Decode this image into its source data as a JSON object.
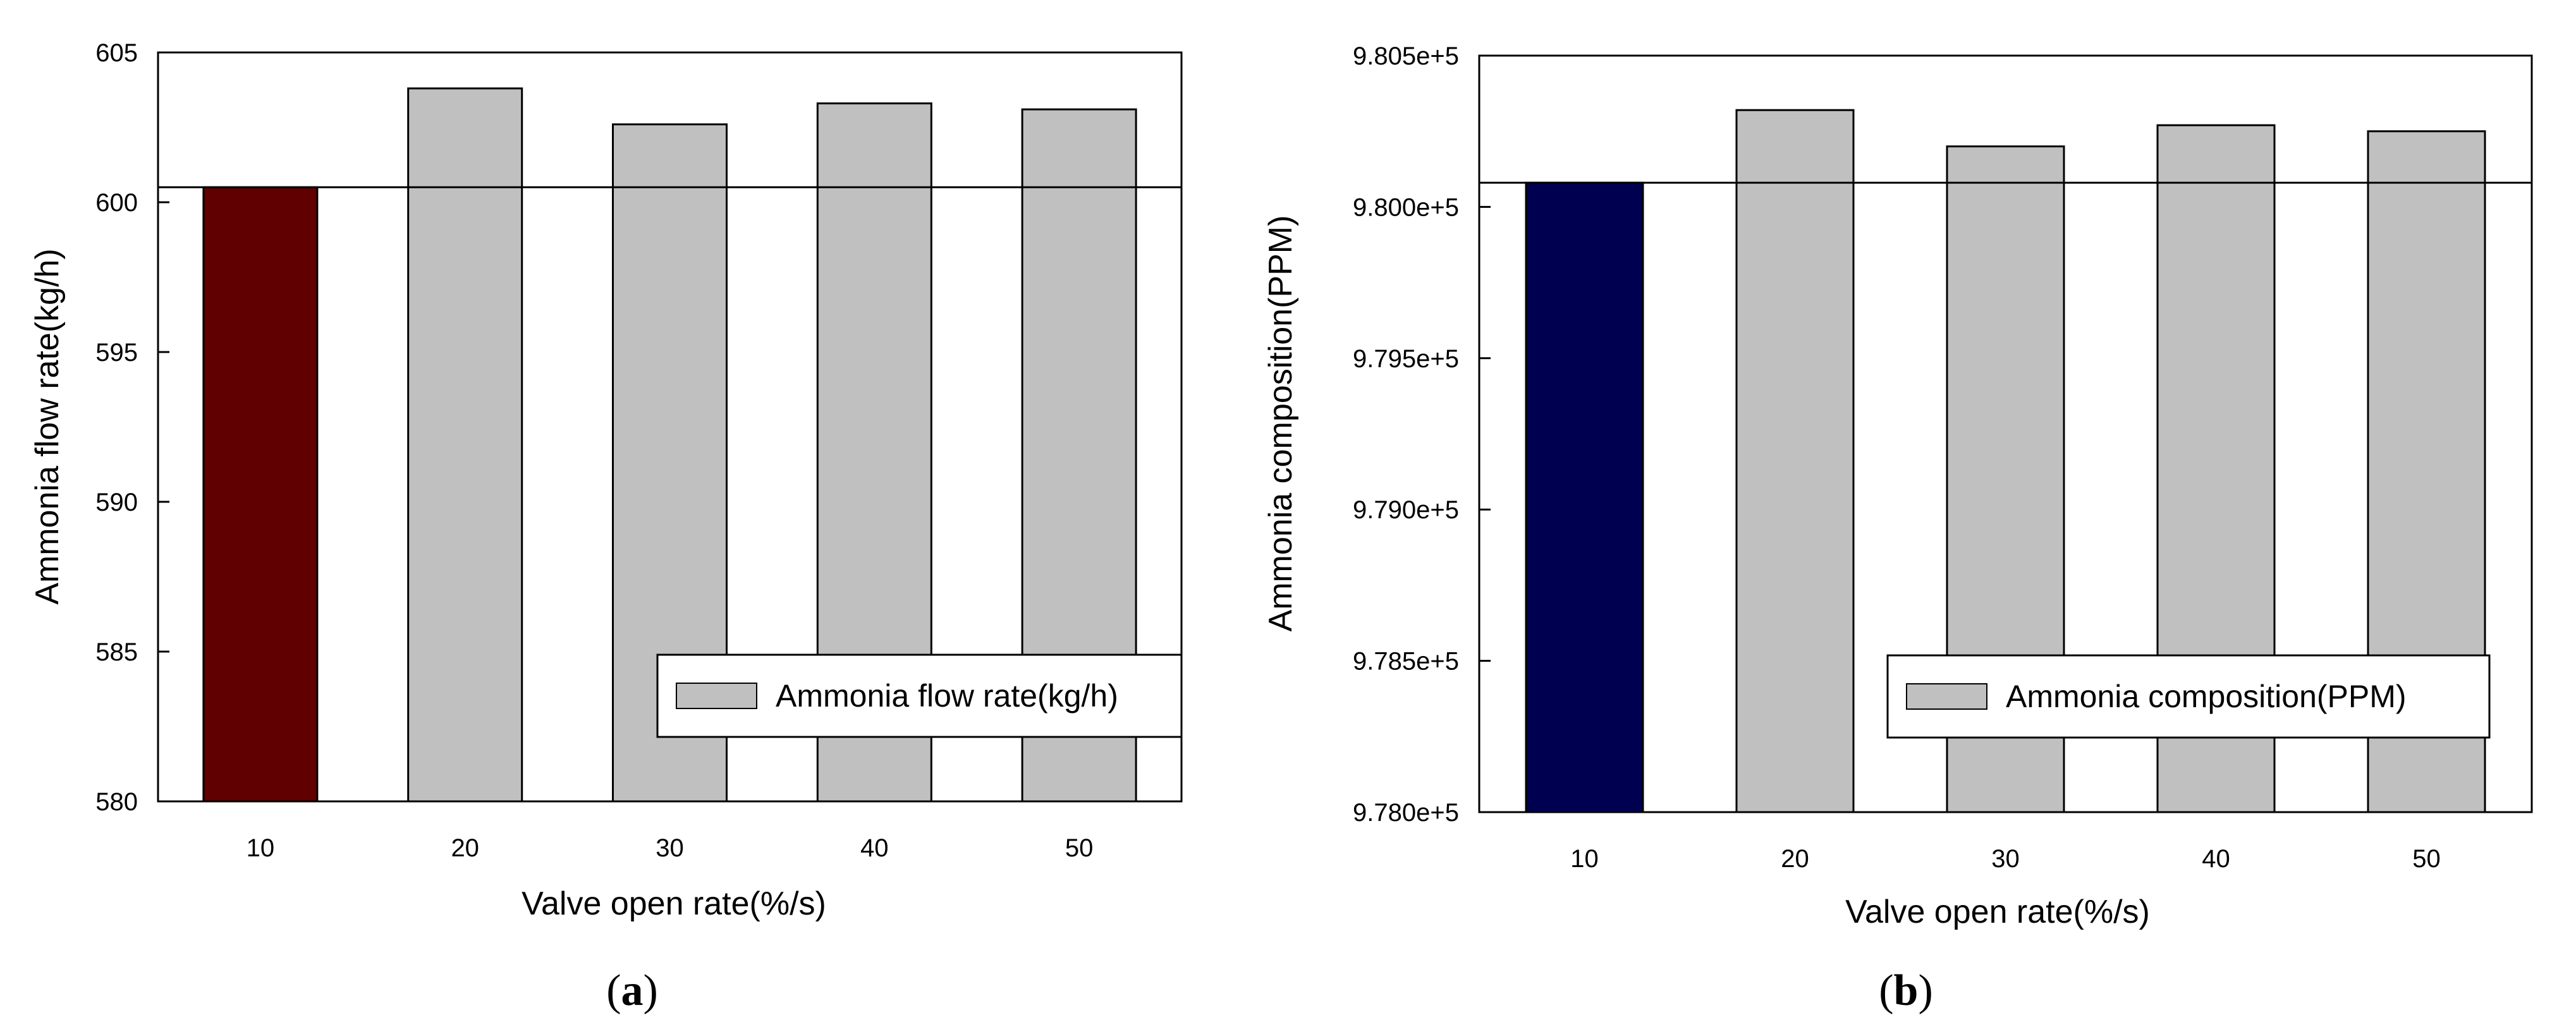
{
  "chart_data": [
    {
      "type": "bar",
      "panel_caption": "a",
      "categories": [
        "10",
        "20",
        "30",
        "40",
        "50"
      ],
      "series": [
        {
          "name": "Ammonia flow rate(kg/h)",
          "values": [
            600.5,
            603.8,
            602.6,
            603.3,
            603.1
          ]
        }
      ],
      "highlight_index": 0,
      "highlight_color": "#600000",
      "bar_color": "#c0c0c0",
      "reference_line": 600.5,
      "title": "",
      "xlabel": "Valve open rate(%/s)",
      "ylabel": "Ammonia flow rate(kg/h)",
      "ylim": [
        580,
        605
      ],
      "yticks": [
        580,
        585,
        590,
        595,
        600,
        605
      ],
      "ytick_labels": [
        "580",
        "585",
        "590",
        "595",
        "600",
        "605"
      ],
      "legend": [
        "Ammonia flow rate(kg/h)"
      ],
      "legend_position": "bottom-right",
      "grid": false
    },
    {
      "type": "bar",
      "panel_caption": "b",
      "categories": [
        "10",
        "20",
        "30",
        "40",
        "50"
      ],
      "series": [
        {
          "name": "Ammonia composition(PPM)",
          "values": [
            980080,
            980320,
            980200,
            980270,
            980250
          ]
        }
      ],
      "highlight_index": 0,
      "highlight_color": "#000050",
      "bar_color": "#c0c0c0",
      "reference_line": 980080,
      "title": "",
      "xlabel": "Valve open rate(%/s)",
      "ylabel": "Ammonia composition(PPM)",
      "ylim": [
        978000,
        980500
      ],
      "yticks": [
        978000,
        978500,
        979000,
        979500,
        980000,
        980500
      ],
      "ytick_labels": [
        "9.780e+5",
        "9.785e+5",
        "9.790e+5",
        "9.795e+5",
        "9.800e+5",
        "9.805e+5"
      ],
      "legend": [
        "Ammonia composition(PPM)"
      ],
      "legend_position": "bottom-right",
      "grid": false
    }
  ]
}
